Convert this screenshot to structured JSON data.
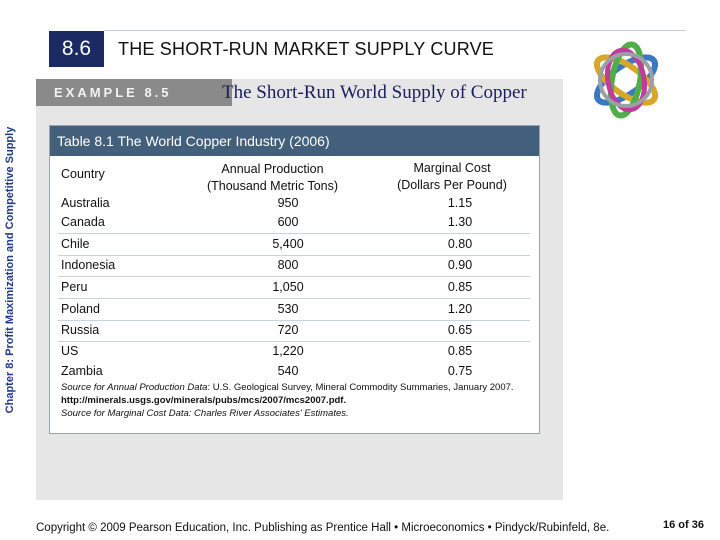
{
  "chapter_label": "Chapter 8:  Profit Maximization and Competitive Supply",
  "section": {
    "number": "8.6",
    "title": "THE SHORT-RUN MARKET SUPPLY CURVE"
  },
  "example": {
    "label": "EXAMPLE 8.5",
    "heading": "The Short-Run World Supply of Copper"
  },
  "table": {
    "caption": "Table 8.1 The World Copper Industry (2006)",
    "headers": {
      "country": "Country",
      "production_line1": "Annual Production",
      "production_line2": "(Thousand Metric Tons)",
      "cost_line1": "Marginal Cost",
      "cost_line2": "(Dollars Per Pound)"
    },
    "rows": [
      {
        "country": "Australia",
        "production": "950",
        "cost": "1.15"
      },
      {
        "country": "Canada",
        "production": "600",
        "cost": "1.30"
      },
      {
        "country": "Chile",
        "production": "5,400",
        "cost": "0.80"
      },
      {
        "country": "Indonesia",
        "production": "800",
        "cost": "0.90"
      },
      {
        "country": "Peru",
        "production": "1,050",
        "cost": "0.85"
      },
      {
        "country": "Poland",
        "production": "530",
        "cost": "1.20"
      },
      {
        "country": "Russia",
        "production": "720",
        "cost": "0.65"
      },
      {
        "country": "US",
        "production": "1,220",
        "cost": "0.85"
      },
      {
        "country": "Zambia",
        "production": "540",
        "cost": "0.75"
      }
    ],
    "notes": {
      "source1_label": "Source for Annual Production Data",
      "source1_text": ": U.S. Geological Survey, Mineral Commodity Summaries, January 2007.",
      "url": "http://minerals.usgs.gov/minerals/pubs/mcs/2007/mcs2007.pdf.",
      "source2_label": "Source for Marginal Cost Data",
      "source2_text": ": Charles River Associates' Estimates."
    }
  },
  "footer": {
    "copyright": "Copyright © 2009 Pearson Education, Inc. Publishing as Prentice Hall • Microeconomics • Pindyck/Rubinfeld, 8e.",
    "page": "16 of 36"
  },
  "colors": {
    "section_box": "#1c2a63",
    "table_caption": "#425f7c",
    "example_band": "#8a8a8a",
    "panel": "#e6e6e6"
  }
}
